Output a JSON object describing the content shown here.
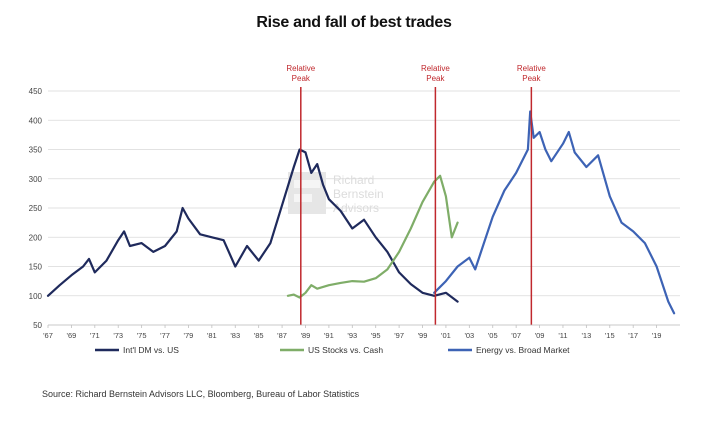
{
  "chart_data": {
    "type": "line",
    "title": "Rise and fall of best trades",
    "xlabel": "",
    "ylabel": "",
    "xlim": [
      1967,
      2021
    ],
    "ylim": [
      50,
      450
    ],
    "y_ticks": [
      50,
      100,
      150,
      200,
      250,
      300,
      350,
      400,
      450
    ],
    "x_tick_labels": [
      "'67",
      "'69",
      "'71",
      "'73",
      "'75",
      "'77",
      "'79",
      "'81",
      "'83",
      "'85",
      "'87",
      "'89",
      "'91",
      "'93",
      "'95",
      "'97",
      "'99",
      "'01",
      "'03",
      "'05",
      "'07",
      "'09",
      "'11",
      "'13",
      "'15",
      "'17",
      "'19"
    ],
    "grid": "horizontal",
    "legend_position": "bottom",
    "series": [
      {
        "name": "Int'l DM vs. US",
        "color": "#1f2a5c",
        "points": [
          [
            1967,
            100
          ],
          [
            1968,
            118
          ],
          [
            1969,
            135
          ],
          [
            1970,
            150
          ],
          [
            1970.5,
            163
          ],
          [
            1971,
            140
          ],
          [
            1972,
            160
          ],
          [
            1973,
            195
          ],
          [
            1973.5,
            210
          ],
          [
            1974,
            185
          ],
          [
            1975,
            190
          ],
          [
            1976,
            175
          ],
          [
            1977,
            185
          ],
          [
            1978,
            210
          ],
          [
            1978.5,
            250
          ],
          [
            1979,
            232
          ],
          [
            1980,
            205
          ],
          [
            1981,
            200
          ],
          [
            1982,
            195
          ],
          [
            1983,
            150
          ],
          [
            1984,
            185
          ],
          [
            1985,
            160
          ],
          [
            1986,
            190
          ],
          [
            1987,
            255
          ],
          [
            1988,
            320
          ],
          [
            1988.5,
            350
          ],
          [
            1989,
            345
          ],
          [
            1989.5,
            310
          ],
          [
            1990,
            325
          ],
          [
            1990.5,
            290
          ],
          [
            1991,
            265
          ],
          [
            1992,
            245
          ],
          [
            1993,
            215
          ],
          [
            1994,
            230
          ],
          [
            1995,
            200
          ],
          [
            1996,
            175
          ],
          [
            1997,
            140
          ],
          [
            1998,
            120
          ],
          [
            1999,
            105
          ],
          [
            2000,
            100
          ],
          [
            2001,
            105
          ],
          [
            2002,
            90
          ]
        ]
      },
      {
        "name": "US Stocks vs. Cash",
        "color": "#7fad68",
        "points": [
          [
            1987.5,
            100
          ],
          [
            1988,
            102
          ],
          [
            1988.5,
            97
          ],
          [
            1989,
            105
          ],
          [
            1989.5,
            118
          ],
          [
            1990,
            112
          ],
          [
            1991,
            118
          ],
          [
            1992,
            122
          ],
          [
            1993,
            125
          ],
          [
            1994,
            124
          ],
          [
            1995,
            130
          ],
          [
            1996,
            145
          ],
          [
            1997,
            175
          ],
          [
            1998,
            215
          ],
          [
            1999,
            260
          ],
          [
            2000,
            295
          ],
          [
            2000.5,
            305
          ],
          [
            2001,
            270
          ],
          [
            2001.5,
            200
          ],
          [
            2002,
            225
          ]
        ]
      },
      {
        "name": "Energy vs. Broad Market",
        "color": "#3d63b5",
        "points": [
          [
            2000,
            105
          ],
          [
            2001,
            125
          ],
          [
            2002,
            150
          ],
          [
            2003,
            165
          ],
          [
            2003.5,
            145
          ],
          [
            2004,
            175
          ],
          [
            2005,
            235
          ],
          [
            2006,
            280
          ],
          [
            2007,
            310
          ],
          [
            2008,
            350
          ],
          [
            2008.2,
            415
          ],
          [
            2008.5,
            370
          ],
          [
            2009,
            380
          ],
          [
            2009.5,
            350
          ],
          [
            2010,
            330
          ],
          [
            2011,
            360
          ],
          [
            2011.5,
            380
          ],
          [
            2012,
            345
          ],
          [
            2013,
            320
          ],
          [
            2014,
            340
          ],
          [
            2015,
            270
          ],
          [
            2016,
            225
          ],
          [
            2017,
            210
          ],
          [
            2018,
            190
          ],
          [
            2019,
            150
          ],
          [
            2020,
            90
          ],
          [
            2020.5,
            70
          ]
        ]
      }
    ],
    "annotations": [
      {
        "text": [
          "Relative",
          "Peak"
        ],
        "x": 1988.6,
        "color": "#c0282d"
      },
      {
        "text": [
          "Relative",
          "Peak"
        ],
        "x": 2000.1,
        "color": "#c0282d"
      },
      {
        "text": [
          "Relative",
          "Peak"
        ],
        "x": 2008.3,
        "color": "#c0282d"
      }
    ],
    "watermark": "Richard Bernstein Advisors"
  },
  "source": "Source: Richard Bernstein Advisors LLC, Bloomberg, Bureau of Labor Statistics"
}
